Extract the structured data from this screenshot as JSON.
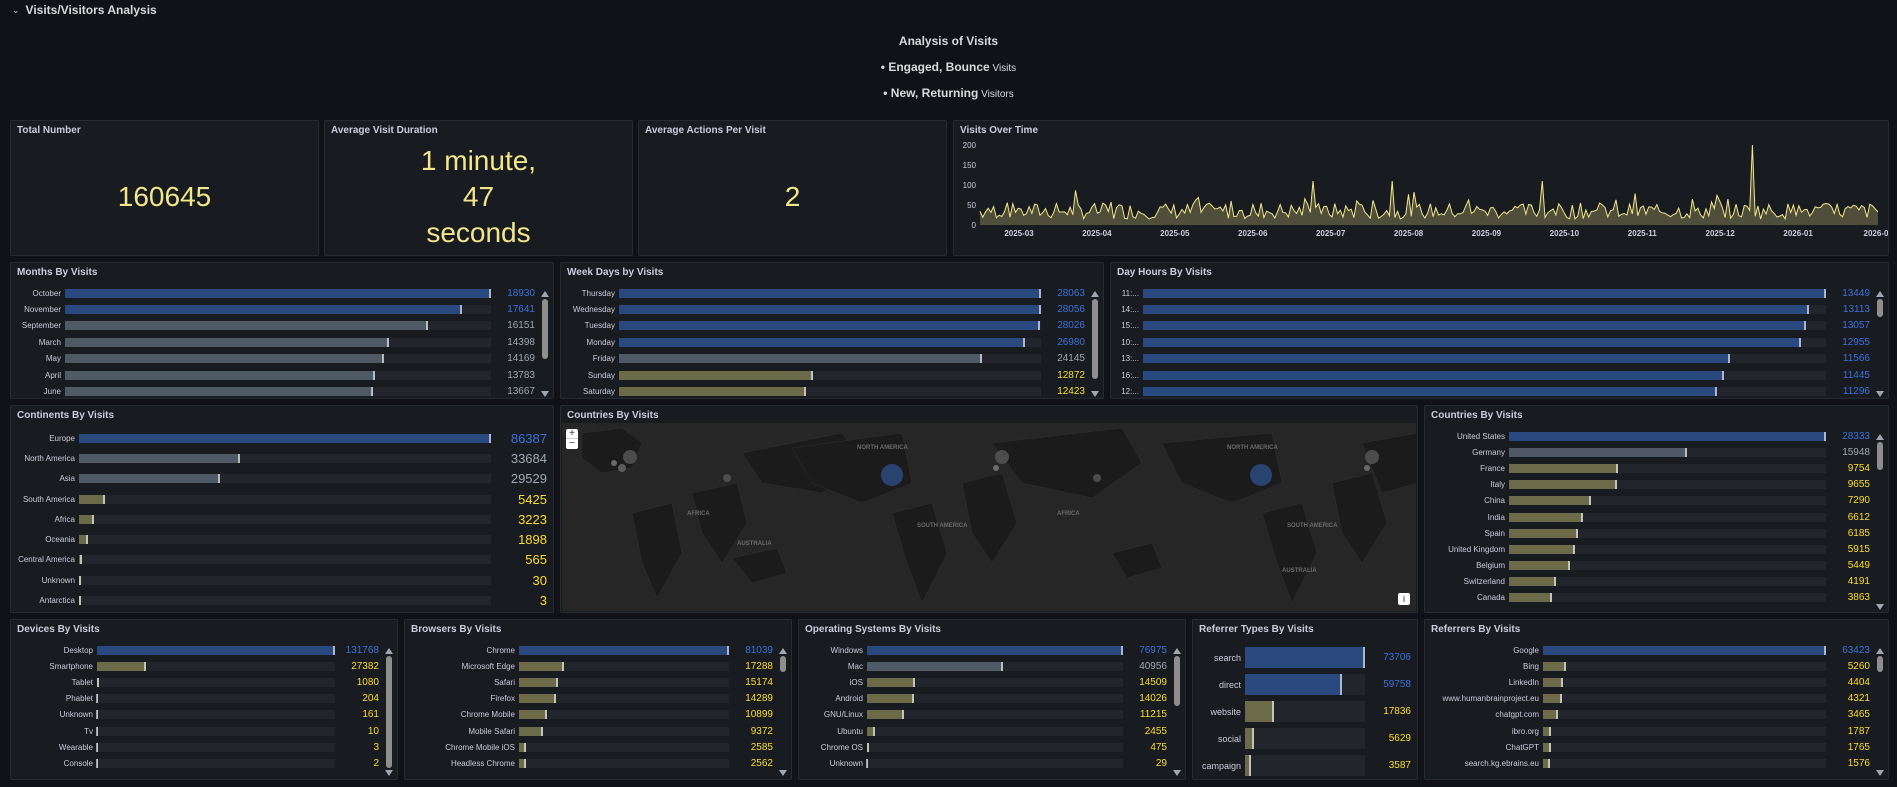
{
  "row": {
    "title": "Visits/Visitors Analysis"
  },
  "intro": {
    "title": "Analysis of Visits",
    "line1_strong": "• Engaged, Bounce",
    "line1_small": " Visits",
    "line2_strong": "• New, Returning",
    "line2_small": " Visitors"
  },
  "colors": {
    "blue": "#3d71d9",
    "blue_bar": "#2a4a7f",
    "grey_bar": "#4f5a66",
    "olive_bar": "#6b6b4a",
    "yellow": "#fade2a",
    "stat": "#f2e68b"
  },
  "stats": [
    {
      "title": "Total Number",
      "value": "160645"
    },
    {
      "title": "Average Visit Duration",
      "value": "1 minute, 47 seconds"
    },
    {
      "title": "Average Actions Per Visit",
      "value": "2"
    }
  ],
  "visits_over_time": {
    "title": "Visits Over Time",
    "chart_data": {
      "type": "line",
      "y_ticks": [
        "200",
        "150",
        "100",
        "50",
        "0"
      ],
      "x_ticks": [
        "2025-03",
        "2025-04",
        "2025-05",
        "2025-06",
        "2025-07",
        "2025-08",
        "2025-09",
        "2025-10",
        "2025-11",
        "2025-12",
        "2026-01",
        "2026-0"
      ],
      "ylim": [
        0,
        200
      ],
      "series_color": "#f2e68b"
    }
  },
  "months": {
    "title": "Months By Visits",
    "items": [
      {
        "label": "October",
        "value": 18930,
        "text": "18930",
        "color": "blue"
      },
      {
        "label": "November",
        "value": 17641,
        "text": "17641",
        "color": "blue"
      },
      {
        "label": "September",
        "value": 16151,
        "text": "16151",
        "color": "grey"
      },
      {
        "label": "March",
        "value": 14398,
        "text": "14398",
        "color": "grey"
      },
      {
        "label": "May",
        "value": 14169,
        "text": "14169",
        "color": "grey"
      },
      {
        "label": "April",
        "value": 13783,
        "text": "13783",
        "color": "grey"
      },
      {
        "label": "June",
        "value": 13667,
        "text": "13667",
        "color": "grey"
      }
    ]
  },
  "weekdays": {
    "title": "Week Days by Visits",
    "items": [
      {
        "label": "Thursday",
        "value": 28063,
        "text": "28063",
        "color": "blue"
      },
      {
        "label": "Wednesday",
        "value": 28056,
        "text": "28056",
        "color": "blue"
      },
      {
        "label": "Tuesday",
        "value": 28026,
        "text": "28026",
        "color": "blue"
      },
      {
        "label": "Monday",
        "value": 26980,
        "text": "26980",
        "color": "blue"
      },
      {
        "label": "Friday",
        "value": 24145,
        "text": "24145",
        "color": "grey"
      },
      {
        "label": "Sunday",
        "value": 12872,
        "text": "12872",
        "color": "yellow"
      },
      {
        "label": "Saturday",
        "value": 12423,
        "text": "12423",
        "color": "yellow"
      }
    ]
  },
  "hours": {
    "title": "Day Hours By Visits",
    "items": [
      {
        "label": "11:...",
        "value": 13449,
        "text": "13449",
        "color": "blue"
      },
      {
        "label": "14:...",
        "value": 13113,
        "text": "13113",
        "color": "blue"
      },
      {
        "label": "15:...",
        "value": 13057,
        "text": "13057",
        "color": "blue"
      },
      {
        "label": "10:...",
        "value": 12955,
        "text": "12955",
        "color": "blue"
      },
      {
        "label": "13:...",
        "value": 11566,
        "text": "11566",
        "color": "blue"
      },
      {
        "label": "16:...",
        "value": 11445,
        "text": "11445",
        "color": "blue"
      },
      {
        "label": "12:...",
        "value": 11296,
        "text": "11296",
        "color": "blue"
      }
    ]
  },
  "continents": {
    "title": "Continents By Visits",
    "items": [
      {
        "label": "Europe",
        "value": 86387,
        "text": "86387",
        "color": "blue"
      },
      {
        "label": "North America",
        "value": 33684,
        "text": "33684",
        "color": "grey"
      },
      {
        "label": "Asia",
        "value": 29529,
        "text": "29529",
        "color": "grey"
      },
      {
        "label": "South America",
        "value": 5425,
        "text": "5425",
        "color": "yellow"
      },
      {
        "label": "Africa",
        "value": 3223,
        "text": "3223",
        "color": "yellow"
      },
      {
        "label": "Oceania",
        "value": 1898,
        "text": "1898",
        "color": "yellow"
      },
      {
        "label": "Central America",
        "value": 565,
        "text": "565",
        "color": "yellow"
      },
      {
        "label": "Unknown",
        "value": 30,
        "text": "30",
        "color": "yellow"
      },
      {
        "label": "Antarctica",
        "value": 3,
        "text": "3",
        "color": "yellow"
      }
    ]
  },
  "map": {
    "title": "Countries By Visits",
    "zoom_in": "+",
    "zoom_out": "−",
    "info": "i",
    "labels": [
      "NORTH AMERICA",
      "SOUTH AMERICA",
      "AFRICA",
      "AUSTRALIA",
      "NORTH AMERICA",
      "SOUTH AMERICA",
      "AFRICA",
      "AUSTRALIA"
    ]
  },
  "countries": {
    "title": "Countries By Visits",
    "items": [
      {
        "label": "United States",
        "value": 28333,
        "text": "28333",
        "color": "blue"
      },
      {
        "label": "Germany",
        "value": 15948,
        "text": "15948",
        "color": "grey"
      },
      {
        "label": "France",
        "value": 9754,
        "text": "9754",
        "color": "yellow"
      },
      {
        "label": "Italy",
        "value": 9655,
        "text": "9655",
        "color": "yellow"
      },
      {
        "label": "China",
        "value": 7290,
        "text": "7290",
        "color": "yellow"
      },
      {
        "label": "India",
        "value": 6612,
        "text": "6612",
        "color": "yellow"
      },
      {
        "label": "Spain",
        "value": 6185,
        "text": "6185",
        "color": "yellow"
      },
      {
        "label": "United Kingdom",
        "value": 5915,
        "text": "5915",
        "color": "yellow"
      },
      {
        "label": "Belgium",
        "value": 5449,
        "text": "5449",
        "color": "yellow"
      },
      {
        "label": "Switzerland",
        "value": 4191,
        "text": "4191",
        "color": "yellow"
      },
      {
        "label": "Canada",
        "value": 3863,
        "text": "3863",
        "color": "yellow"
      }
    ]
  },
  "devices": {
    "title": "Devices By Visits",
    "items": [
      {
        "label": "Desktop",
        "value": 131768,
        "text": "131768",
        "color": "blue"
      },
      {
        "label": "Smartphone",
        "value": 27382,
        "text": "27382",
        "color": "yellow"
      },
      {
        "label": "Tablet",
        "value": 1080,
        "text": "1080",
        "color": "yellow"
      },
      {
        "label": "Phablet",
        "value": 204,
        "text": "204",
        "color": "yellow"
      },
      {
        "label": "Unknown",
        "value": 161,
        "text": "161",
        "color": "yellow"
      },
      {
        "label": "Tv",
        "value": 10,
        "text": "10",
        "color": "yellow"
      },
      {
        "label": "Wearable",
        "value": 3,
        "text": "3",
        "color": "yellow"
      },
      {
        "label": "Console",
        "value": 2,
        "text": "2",
        "color": "yellow"
      }
    ]
  },
  "browsers": {
    "title": "Browsers By Visits",
    "items": [
      {
        "label": "Chrome",
        "value": 81039,
        "text": "81039",
        "color": "blue"
      },
      {
        "label": "Microsoft Edge",
        "value": 17288,
        "text": "17288",
        "color": "yellow"
      },
      {
        "label": "Safari",
        "value": 15174,
        "text": "15174",
        "color": "yellow"
      },
      {
        "label": "Firefox",
        "value": 14289,
        "text": "14289",
        "color": "yellow"
      },
      {
        "label": "Chrome Mobile",
        "value": 10899,
        "text": "10899",
        "color": "yellow"
      },
      {
        "label": "Mobile Safari",
        "value": 9372,
        "text": "9372",
        "color": "yellow"
      },
      {
        "label": "Chrome Mobile iOS",
        "value": 2585,
        "text": "2585",
        "color": "yellow"
      },
      {
        "label": "Headless Chrome",
        "value": 2562,
        "text": "2562",
        "color": "yellow"
      }
    ]
  },
  "os": {
    "title": "Operating Systems By Visits",
    "items": [
      {
        "label": "Windows",
        "value": 76975,
        "text": "76975",
        "color": "blue"
      },
      {
        "label": "Mac",
        "value": 40956,
        "text": "40956",
        "color": "grey"
      },
      {
        "label": "iOS",
        "value": 14509,
        "text": "14509",
        "color": "yellow"
      },
      {
        "label": "Android",
        "value": 14026,
        "text": "14026",
        "color": "yellow"
      },
      {
        "label": "GNU/Linux",
        "value": 11215,
        "text": "11215",
        "color": "yellow"
      },
      {
        "label": "Ubuntu",
        "value": 2455,
        "text": "2455",
        "color": "yellow"
      },
      {
        "label": "Chrome OS",
        "value": 475,
        "text": "475",
        "color": "yellow"
      },
      {
        "label": "Unknown",
        "value": 29,
        "text": "29",
        "color": "yellow"
      }
    ]
  },
  "referrer_types": {
    "title": "Referrer Types By Visits",
    "items": [
      {
        "label": "search",
        "value": 73706,
        "text": "73706",
        "color": "blue"
      },
      {
        "label": "direct",
        "value": 59758,
        "text": "59758",
        "color": "blue"
      },
      {
        "label": "website",
        "value": 17836,
        "text": "17836",
        "color": "yellow"
      },
      {
        "label": "social",
        "value": 5629,
        "text": "5629",
        "color": "yellow"
      },
      {
        "label": "campaign",
        "value": 3587,
        "text": "3587",
        "color": "yellow"
      }
    ]
  },
  "referrers": {
    "title": "Referrers By Visits",
    "items": [
      {
        "label": "Google",
        "value": 63423,
        "text": "63423",
        "color": "blue"
      },
      {
        "label": "Bing",
        "value": 5260,
        "text": "5260",
        "color": "yellow"
      },
      {
        "label": "LinkedIn",
        "value": 4404,
        "text": "4404",
        "color": "yellow"
      },
      {
        "label": "www.humanbrainproject.eu",
        "value": 4321,
        "text": "4321",
        "color": "yellow"
      },
      {
        "label": "chatgpt.com",
        "value": 3465,
        "text": "3465",
        "color": "yellow"
      },
      {
        "label": "ibro.org",
        "value": 1787,
        "text": "1787",
        "color": "yellow"
      },
      {
        "label": "ChatGPT",
        "value": 1765,
        "text": "1765",
        "color": "yellow"
      },
      {
        "label": "search.kg.ebrains.eu",
        "value": 1576,
        "text": "1576",
        "color": "yellow"
      }
    ]
  }
}
